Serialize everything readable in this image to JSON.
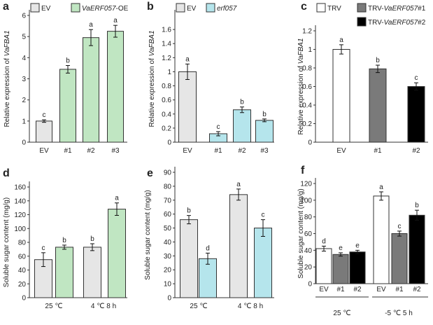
{
  "chart_data": [
    {
      "type": "bar",
      "panel_label": "a",
      "ylabel_pre": "Relative expression of ",
      "ylabel_gene": "VaFBA1",
      "ylim": [
        0,
        6
      ],
      "yticks": [
        "0",
        "1",
        "2",
        "3",
        "4",
        "5",
        "6"
      ],
      "categories": [
        "EV",
        "#1",
        "#2",
        "#3"
      ],
      "values": [
        1.0,
        3.45,
        4.95,
        5.25
      ],
      "errors": [
        0.06,
        0.18,
        0.38,
        0.28
      ],
      "sig": [
        "c",
        "b",
        "a",
        "a"
      ],
      "colors": [
        "#e6e6e6",
        "#c0e6c2",
        "#c0e6c2",
        "#c0e6c2"
      ],
      "legend": [
        {
          "pre": "EV",
          "italic": "",
          "post": "",
          "color": "#e6e6e6"
        },
        {
          "pre": "",
          "italic": "VaERF057",
          "post": "-OE",
          "color": "#c0e6c2"
        }
      ]
    },
    {
      "type": "bar",
      "panel_label": "b",
      "ylabel_pre": "Relative expression of ",
      "ylabel_gene": "VaFBA1",
      "ylim": [
        0,
        1.8
      ],
      "yticks": [
        "0",
        "0.2",
        "0.4",
        "0.6",
        "0.8",
        "1",
        "1.2",
        "1.4",
        "1.6"
      ],
      "categories": [
        "EV",
        "#1",
        "#2",
        "#3"
      ],
      "values": [
        1.0,
        0.12,
        0.46,
        0.31
      ],
      "errors": [
        0.11,
        0.03,
        0.04,
        0.02
      ],
      "sig": [
        "a",
        "c",
        "b",
        "b"
      ],
      "colors": [
        "#e6e6e6",
        "#b5e5ec",
        "#b5e5ec",
        "#b5e5ec"
      ],
      "legend": [
        {
          "pre": "EV",
          "italic": "",
          "post": "",
          "color": "#e6e6e6"
        },
        {
          "pre": "",
          "italic": "erf057",
          "post": "",
          "color": "#b5e5ec"
        }
      ]
    },
    {
      "type": "bar",
      "panel_label": "c",
      "ylabel_pre": "Relative expression of ",
      "ylabel_gene": "VaFBA1",
      "ylim": [
        0,
        1.2
      ],
      "yticks": [
        "0",
        "0.2",
        "0.4",
        "0.6",
        "0.8",
        "1",
        "1.2"
      ],
      "categories": [
        "EV",
        "#1",
        "#2"
      ],
      "values": [
        1.0,
        0.79,
        0.6
      ],
      "errors": [
        0.05,
        0.04,
        0.04
      ],
      "sig": [
        "a",
        "b",
        "c"
      ],
      "colors": [
        "#ffffff",
        "#7a7a7a",
        "#000000"
      ],
      "legend": [
        {
          "pre": "TRV",
          "italic": "",
          "post": "",
          "color": "#ffffff"
        },
        {
          "pre": "TRV-",
          "italic": "VaERF057",
          "post": "#1",
          "color": "#7a7a7a"
        },
        {
          "pre": "TRV-",
          "italic": "VaERF057",
          "post": "#2",
          "color": "#000000"
        }
      ]
    },
    {
      "type": "bar",
      "panel_label": "d",
      "ylabel_pre": "Soluble sugar content (mg/g)",
      "ylabel_gene": "",
      "ylim": [
        0,
        160
      ],
      "yticks": [
        "0",
        "20",
        "40",
        "60",
        "80",
        "100",
        "120",
        "140",
        "160"
      ],
      "group_labels": [
        "25 ℃",
        "4 ℃ 8 h"
      ],
      "bars_per_group": 2,
      "values": [
        55,
        73,
        73,
        128
      ],
      "errors": [
        10,
        3,
        5,
        9
      ],
      "sig": [
        "c",
        "b",
        "b",
        "a"
      ],
      "colors": [
        "#e6e6e6",
        "#c0e6c2",
        "#e6e6e6",
        "#c0e6c2"
      ]
    },
    {
      "type": "bar",
      "panel_label": "e",
      "ylabel_pre": "Soluble sugar content (mg/g)",
      "ylabel_gene": "",
      "ylim": [
        0,
        90
      ],
      "yticks": [
        "0",
        "10",
        "20",
        "30",
        "40",
        "50",
        "60",
        "70",
        "80",
        "90"
      ],
      "group_labels": [
        "25 ℃",
        "4 ℃ 8 h"
      ],
      "bars_per_group": 2,
      "values": [
        56,
        28,
        74,
        50
      ],
      "errors": [
        3,
        4,
        4,
        6
      ],
      "sig": [
        "b",
        "d",
        "a",
        "c"
      ],
      "colors": [
        "#e6e6e6",
        "#b5e5ec",
        "#e6e6e6",
        "#b5e5ec"
      ]
    },
    {
      "type": "bar",
      "panel_label": "f",
      "ylabel_pre": "Soluble sugar content (mg/g)",
      "ylabel_gene": "",
      "ylim": [
        0,
        120
      ],
      "yticks": [
        "0",
        "20",
        "40",
        "60",
        "80",
        "100",
        "120"
      ],
      "categories": [
        "EV",
        "#1",
        "#2",
        "EV",
        "#1",
        "#2"
      ],
      "group_labels": [
        "25 ℃",
        "-5 ℃ 5 h"
      ],
      "bars_per_group": 3,
      "values": [
        42,
        35,
        38,
        105,
        60,
        82
      ],
      "errors": [
        3,
        2,
        2,
        5,
        3,
        6
      ],
      "sig": [
        "d",
        "e",
        "e",
        "a",
        "c",
        "b"
      ],
      "colors": [
        "#ffffff",
        "#7a7a7a",
        "#000000",
        "#ffffff",
        "#7a7a7a",
        "#000000"
      ]
    }
  ]
}
